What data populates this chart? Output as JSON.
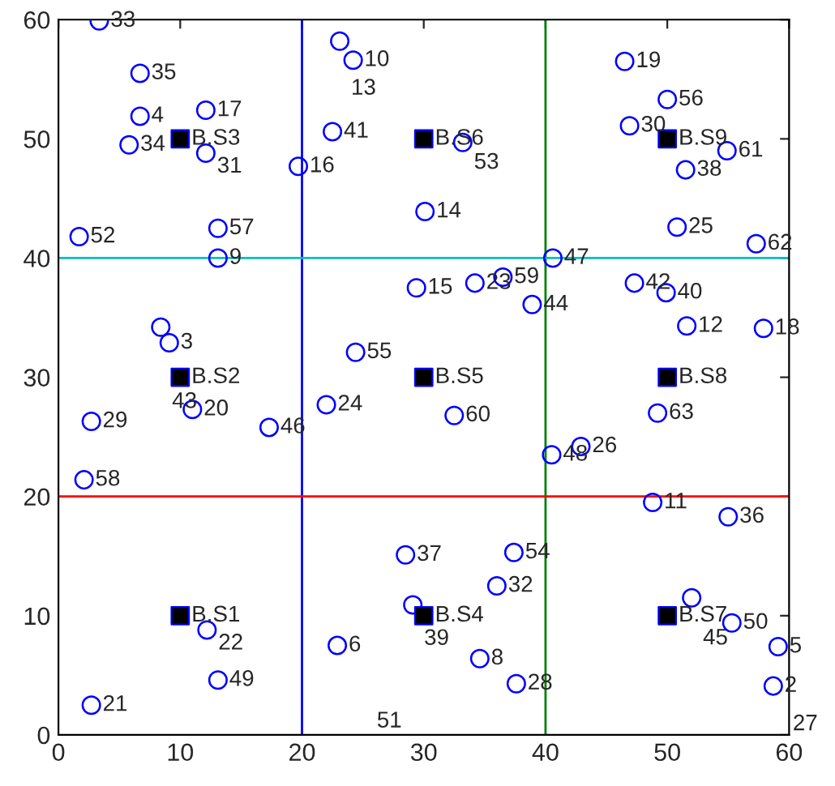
{
  "chart_data": {
    "type": "scatter",
    "xlim": [
      0,
      60
    ],
    "ylim": [
      0,
      60
    ],
    "xticks": [
      0,
      10,
      20,
      30,
      40,
      50,
      60
    ],
    "yticks": [
      0,
      10,
      20,
      30,
      40,
      50,
      60
    ],
    "grid": false,
    "legend": false,
    "series": [
      {
        "marker": "circle",
        "color": "#0000ff",
        "x": [
          3.35,
          6.7,
          12.1,
          6.7,
          5.8,
          12.1,
          22.5,
          19.7,
          23.1,
          24.2,
          1.7,
          13.1,
          13.1,
          8.4,
          9.1,
          24.4,
          29.4,
          30.1,
          33.2,
          46.5,
          50.0,
          46.9,
          54.9,
          51.5,
          50.8,
          57.3,
          40.6,
          34.2,
          36.5,
          38.9,
          47.3,
          49.9,
          51.6,
          57.9,
          2.7,
          11.0,
          17.3,
          22.0,
          2.1,
          28.5,
          29.1,
          12.2,
          22.9,
          13.1,
          2.7,
          32.5,
          40.5,
          42.9,
          49.2,
          48.8,
          55.0,
          37.4,
          36.0,
          52.0,
          55.3,
          59.1,
          34.6,
          37.6,
          58.7
        ],
        "values": [
          59.9,
          55.5,
          52.4,
          51.9,
          49.5,
          48.8,
          50.6,
          47.7,
          58.2,
          56.6,
          41.8,
          42.5,
          40.0,
          34.2,
          32.9,
          32.1,
          37.5,
          43.9,
          49.7,
          56.5,
          53.3,
          51.1,
          49.0,
          47.4,
          42.6,
          41.2,
          40.0,
          37.9,
          38.4,
          36.1,
          37.9,
          37.1,
          34.3,
          34.1,
          26.3,
          27.3,
          25.8,
          27.7,
          21.4,
          15.1,
          10.9,
          8.8,
          7.5,
          4.6,
          2.5,
          26.8,
          23.5,
          24.2,
          27.0,
          19.5,
          18.3,
          15.3,
          12.5,
          11.5,
          9.4,
          7.4,
          6.4,
          4.3,
          4.1
        ]
      },
      {
        "marker": "square",
        "color": "#000000",
        "x": [
          10,
          10,
          10,
          30,
          30,
          30,
          50,
          50,
          50
        ],
        "values": [
          10,
          30,
          50,
          10,
          30,
          50,
          10,
          30,
          50
        ]
      }
    ],
    "ref_lines": [
      {
        "axis": "x",
        "value": 20,
        "color": "#0000ff"
      },
      {
        "axis": "x",
        "value": 40,
        "color": "#008000"
      },
      {
        "axis": "y",
        "value": 40,
        "color": "#00c0c0"
      },
      {
        "axis": "y",
        "value": 20,
        "color": "#ff0000"
      }
    ],
    "annotations": [
      {
        "text": "33",
        "x": 3.35,
        "y": 59.9
      },
      {
        "text": "35",
        "x": 6.7,
        "y": 55.5
      },
      {
        "text": "17",
        "x": 12.1,
        "y": 52.4
      },
      {
        "text": "4",
        "x": 6.7,
        "y": 51.9
      },
      {
        "text": "34",
        "x": 5.8,
        "y": 49.5
      },
      {
        "text": "31",
        "x": 12.1,
        "y": 48.8
      },
      {
        "text": "41",
        "x": 22.5,
        "y": 50.6
      },
      {
        "text": "16",
        "x": 19.7,
        "y": 47.7
      },
      {
        "text": "13",
        "x": 23.1,
        "y": 58.2
      },
      {
        "text": "10",
        "x": 24.2,
        "y": 56.6
      },
      {
        "text": "52",
        "x": 1.7,
        "y": 41.8
      },
      {
        "text": "57",
        "x": 13.1,
        "y": 42.5
      },
      {
        "text": "9",
        "x": 13.1,
        "y": 40.0
      },
      {
        "text": "43",
        "x": 8.4,
        "y": 34.2
      },
      {
        "text": "3",
        "x": 9.1,
        "y": 32.9
      },
      {
        "text": "55",
        "x": 24.4,
        "y": 32.1
      },
      {
        "text": "15",
        "x": 29.4,
        "y": 37.5
      },
      {
        "text": "14",
        "x": 30.1,
        "y": 43.9
      },
      {
        "text": "53",
        "x": 33.2,
        "y": 49.7
      },
      {
        "text": "19",
        "x": 46.5,
        "y": 56.5
      },
      {
        "text": "56",
        "x": 50.0,
        "y": 53.3
      },
      {
        "text": "30",
        "x": 46.9,
        "y": 51.1
      },
      {
        "text": "61",
        "x": 54.9,
        "y": 49.0
      },
      {
        "text": "38",
        "x": 51.5,
        "y": 47.4
      },
      {
        "text": "25",
        "x": 50.8,
        "y": 42.6
      },
      {
        "text": "62",
        "x": 57.3,
        "y": 41.2
      },
      {
        "text": "47",
        "x": 40.6,
        "y": 40.0
      },
      {
        "text": "23",
        "x": 34.2,
        "y": 37.9
      },
      {
        "text": "59",
        "x": 36.5,
        "y": 38.4
      },
      {
        "text": "44",
        "x": 38.9,
        "y": 36.1
      },
      {
        "text": "42",
        "x": 47.3,
        "y": 37.9
      },
      {
        "text": "40",
        "x": 49.9,
        "y": 37.1
      },
      {
        "text": "12",
        "x": 51.6,
        "y": 34.3
      },
      {
        "text": "18",
        "x": 57.9,
        "y": 34.1
      },
      {
        "text": "29",
        "x": 2.7,
        "y": 26.3
      },
      {
        "text": "20",
        "x": 11.0,
        "y": 27.3
      },
      {
        "text": "46",
        "x": 17.3,
        "y": 25.8
      },
      {
        "text": "24",
        "x": 22.0,
        "y": 27.7
      },
      {
        "text": "58",
        "x": 2.1,
        "y": 21.4
      },
      {
        "text": "37",
        "x": 28.5,
        "y": 15.1
      },
      {
        "text": "39",
        "x": 29.1,
        "y": 10.9
      },
      {
        "text": "22",
        "x": 12.2,
        "y": 8.8
      },
      {
        "text": "6",
        "x": 22.9,
        "y": 7.5
      },
      {
        "text": "49",
        "x": 13.1,
        "y": 4.6
      },
      {
        "text": "21",
        "x": 2.7,
        "y": 2.5
      },
      {
        "text": "60",
        "x": 32.5,
        "y": 26.8
      },
      {
        "text": "48",
        "x": 40.5,
        "y": 23.5
      },
      {
        "text": "26",
        "x": 42.9,
        "y": 24.2
      },
      {
        "text": "63",
        "x": 49.2,
        "y": 27.0
      },
      {
        "text": "11",
        "x": 48.8,
        "y": 19.5
      },
      {
        "text": "36",
        "x": 55.0,
        "y": 18.3
      },
      {
        "text": "54",
        "x": 37.4,
        "y": 15.3
      },
      {
        "text": "32",
        "x": 36.0,
        "y": 12.5
      },
      {
        "text": "45",
        "x": 52.0,
        "y": 11.5
      },
      {
        "text": "50",
        "x": 55.3,
        "y": 9.4
      },
      {
        "text": "5",
        "x": 59.1,
        "y": 7.4
      },
      {
        "text": "8",
        "x": 34.6,
        "y": 6.4
      },
      {
        "text": "28",
        "x": 37.6,
        "y": 4.3
      },
      {
        "text": "2",
        "x": 58.7,
        "y": 4.1
      },
      {
        "text": "B.S1",
        "x": 10,
        "y": 10
      },
      {
        "text": "B.S2",
        "x": 10,
        "y": 30
      },
      {
        "text": "B.S3",
        "x": 10,
        "y": 50
      },
      {
        "text": "B.S4",
        "x": 30,
        "y": 10
      },
      {
        "text": "B.S5",
        "x": 30,
        "y": 30
      },
      {
        "text": "B.S6",
        "x": 30,
        "y": 50
      },
      {
        "text": "B.S7",
        "x": 50,
        "y": 10
      },
      {
        "text": "B.S8",
        "x": 50,
        "y": 30
      },
      {
        "text": "B.S9",
        "x": 50,
        "y": 50
      },
      "51",
      "27"
    ]
  }
}
